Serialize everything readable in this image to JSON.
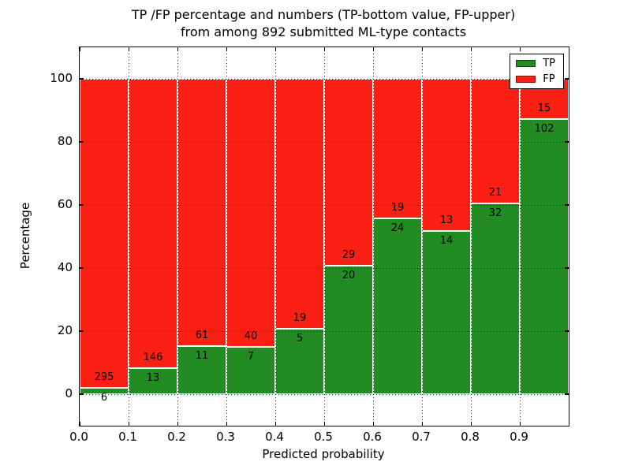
{
  "figure": {
    "title_line1": "TP /FP percentage and numbers (TP-bottom value, FP-upper)",
    "title_line2": "from among 892 submitted ML-type contacts",
    "xlabel": "Predicted probability",
    "ylabel": "Percentage",
    "background_color": "#ffffff"
  },
  "chart_data": {
    "type": "bar",
    "stacked": true,
    "stack_normalized_to_percent": true,
    "total_contacts": 892,
    "categories": [
      "0.0-0.1",
      "0.1-0.2",
      "0.2-0.3",
      "0.3-0.4",
      "0.4-0.5",
      "0.5-0.6",
      "0.6-0.7",
      "0.7-0.8",
      "0.8-0.9",
      "0.9-1.0"
    ],
    "series": [
      {
        "name": "TP",
        "color": "#228b22",
        "position": "bottom",
        "values": [
          6,
          13,
          11,
          7,
          5,
          20,
          24,
          14,
          32,
          102
        ]
      },
      {
        "name": "FP",
        "color": "#fb2013",
        "position": "upper",
        "values": [
          295,
          146,
          61,
          40,
          19,
          29,
          19,
          13,
          21,
          15
        ]
      }
    ],
    "tp_percent_of_bin": [
      2.0,
      8.2,
      15.3,
      14.9,
      20.8,
      40.8,
      55.8,
      51.9,
      60.4,
      87.2
    ],
    "title": "TP /FP percentage and numbers (TP-bottom value, FP-upper) from among 892 submitted ML-type contacts",
    "xlabel": "Predicted probability",
    "ylabel": "Percentage",
    "xticks": [
      "0.0",
      "0.1",
      "0.2",
      "0.3",
      "0.4",
      "0.5",
      "0.6",
      "0.7",
      "0.8",
      "0.9"
    ],
    "yticks": [
      0,
      20,
      40,
      60,
      80,
      100
    ],
    "xlim": [
      0.0,
      1.0
    ],
    "ylim": [
      -10,
      110
    ],
    "grid": "dotted",
    "grid_color": "#000000",
    "bar_edge_color": "#ffffff",
    "legend_position": "upper right",
    "legend_entries": [
      "TP",
      "FP"
    ]
  }
}
